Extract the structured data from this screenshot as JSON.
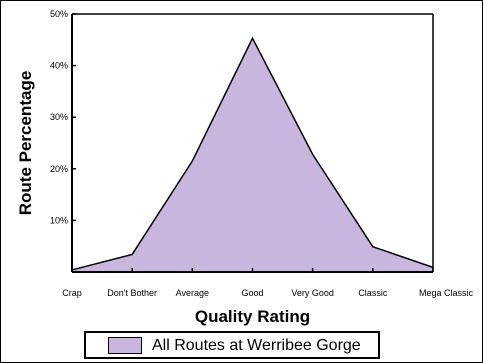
{
  "chart_data": {
    "type": "area",
    "title": "",
    "xlabel": "Quality Rating",
    "ylabel": "Route Percentage",
    "categories": [
      "Crap",
      "Don't Bother",
      "Average",
      "Good",
      "Very Good",
      "Classic",
      "Mega Classic"
    ],
    "ylim": [
      0,
      50
    ],
    "yticks": [
      10,
      20,
      30,
      40,
      50
    ],
    "ytick_labels": [
      "10%",
      "20%",
      "30%",
      "40%",
      "50%"
    ],
    "grid": false,
    "legend_position": "bottom",
    "series": [
      {
        "name": "All Routes at Werribee Gorge",
        "values": [
          0.4,
          3.4,
          21.5,
          45.3,
          22.8,
          4.9,
          0.9
        ],
        "color": "#c8b6de",
        "stroke": "#000000"
      }
    ]
  }
}
